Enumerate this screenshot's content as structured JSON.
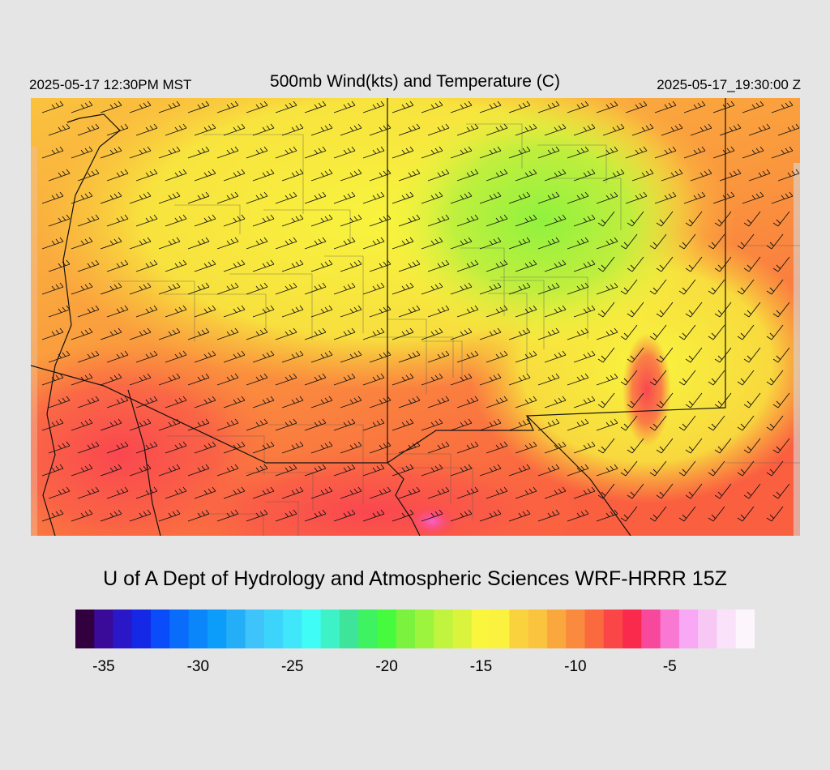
{
  "header": {
    "local_time": "2025-05-17 12:30PM MST",
    "title": "500mb Wind(kts) and Temperature (C)",
    "utc_time": "2025-05-17_19:30:00 Z"
  },
  "footer": {
    "credit": "U of A Dept of Hydrology and Atmospheric Sciences WRF-HRRR 15Z"
  },
  "colorbar": {
    "colors": [
      "#33003f",
      "#3a0a99",
      "#2a18c8",
      "#1428e6",
      "#0a4cfa",
      "#0a6cfa",
      "#0a86fa",
      "#0c9cfa",
      "#24aef8",
      "#3ec4fa",
      "#3cd4fa",
      "#40e6fa",
      "#40fcf6",
      "#3ef2c8",
      "#3ee49a",
      "#3ef262",
      "#46fa3e",
      "#7af23e",
      "#9cf43e",
      "#c0f43e",
      "#daf43e",
      "#faf63e",
      "#faf23e",
      "#fad23e",
      "#fac43e",
      "#faa83e",
      "#fa8a3e",
      "#fa6a3e",
      "#fa4646",
      "#fa2a4c",
      "#f8489c",
      "#f878d2",
      "#f8a8f4",
      "#f8c8f4",
      "#fae2fa",
      "#fcf6fc"
    ],
    "ticks": [
      {
        "label": "-35",
        "value": -35
      },
      {
        "label": "-30",
        "value": -30
      },
      {
        "label": "-25",
        "value": -25
      },
      {
        "label": "-20",
        "value": -20
      },
      {
        "label": "-15",
        "value": -15
      },
      {
        "label": "-10",
        "value": -10
      },
      {
        "label": "-5",
        "value": -5
      }
    ],
    "min_value": -36,
    "step": 1
  }
}
